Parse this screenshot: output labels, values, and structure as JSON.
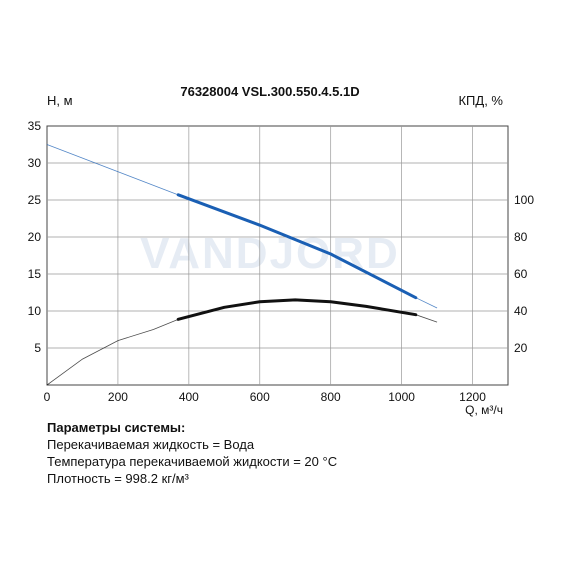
{
  "chart_data": {
    "type": "line",
    "title": "76328004 VSL.300.550.4.5.1D",
    "ylabel": "H, м",
    "y2label": "КПД, %",
    "xlabel": "Q, м³/ч",
    "xlim": [
      0,
      1300
    ],
    "ylim": [
      0,
      35
    ],
    "y2lim": [
      0,
      140
    ],
    "x_ticks": [
      0,
      200,
      400,
      600,
      800,
      1000,
      1200
    ],
    "y_ticks": [
      5,
      10,
      15,
      20,
      25,
      30,
      35
    ],
    "y2_ticks": [
      20,
      40,
      60,
      80,
      100
    ],
    "grid": true,
    "watermark": "VANDJORD",
    "series": [
      {
        "axis": "left",
        "color": "#1a5fb4",
        "points": [
          [
            0,
            32.5
          ],
          [
            370,
            25.7
          ],
          [
            600,
            21.6
          ],
          [
            800,
            17.7
          ],
          [
            1040,
            11.8
          ],
          [
            1100,
            10.4
          ]
        ],
        "operating_range": [
          370,
          1040
        ]
      },
      {
        "axis": "right",
        "color": "#111111",
        "points": [
          [
            0,
            0
          ],
          [
            100,
            14
          ],
          [
            200,
            24
          ],
          [
            300,
            30
          ],
          [
            370,
            35.5
          ],
          [
            500,
            42
          ],
          [
            600,
            45
          ],
          [
            700,
            46
          ],
          [
            800,
            45
          ],
          [
            900,
            42.5
          ],
          [
            1040,
            38
          ],
          [
            1100,
            34
          ]
        ],
        "operating_range": [
          370,
          1040
        ]
      }
    ]
  },
  "system_params": {
    "header": "Параметры системы:",
    "liquid": "Перекачиваемая жидкость = Вода",
    "temperature": "Температура перекачиваемой жидкости = 20 °C",
    "density": "Плотность = 998.2 кг/м³"
  }
}
